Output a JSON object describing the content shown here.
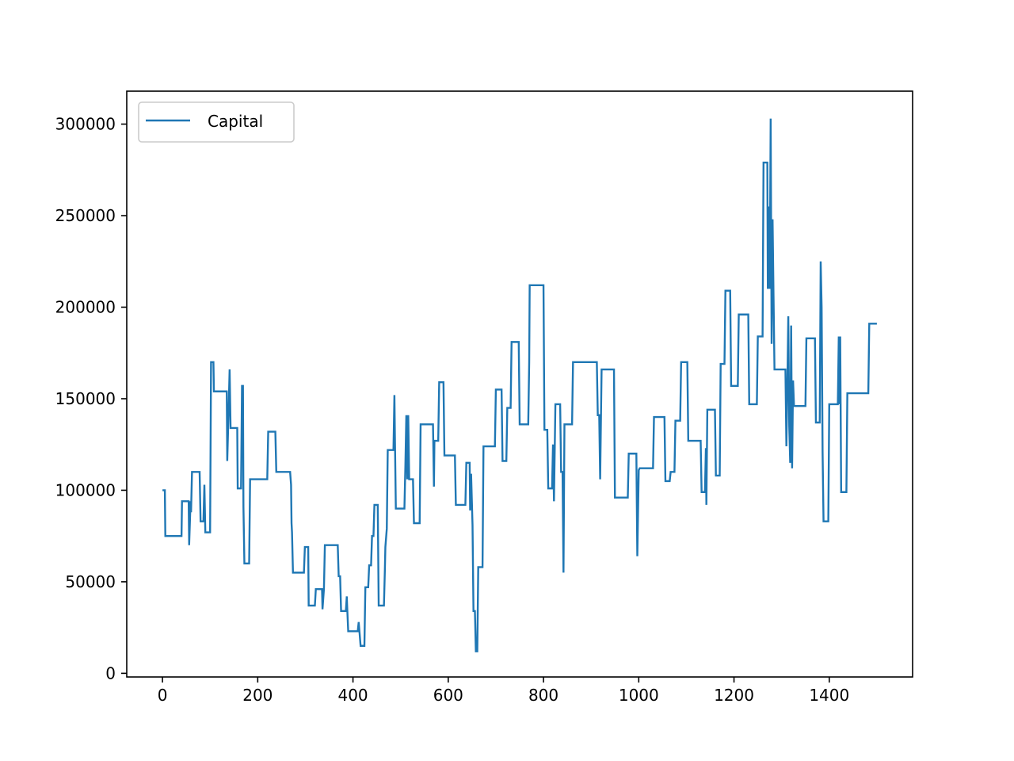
{
  "chart_data": {
    "type": "line",
    "title": "",
    "xlabel": "",
    "ylabel": "",
    "xlim": [
      -75,
      1575
    ],
    "ylim": [
      -2000,
      318000
    ],
    "xticks": [
      0,
      200,
      400,
      600,
      800,
      1000,
      1200,
      1400
    ],
    "xtick_labels": [
      "0",
      "200",
      "400",
      "600",
      "800",
      "1000",
      "1200",
      "1400"
    ],
    "yticks": [
      0,
      50000,
      100000,
      150000,
      200000,
      250000,
      300000
    ],
    "ytick_labels": [
      "0",
      "50000",
      "100000",
      "150000",
      "200000",
      "250000",
      "300000"
    ],
    "grid": false,
    "legend_position": "upper-left",
    "series": [
      {
        "name": "Capital",
        "color": "#1f77b4",
        "step": true,
        "points": [
          [
            0,
            100000
          ],
          [
            5,
            100000
          ],
          [
            6,
            75000
          ],
          [
            40,
            75000
          ],
          [
            41,
            94000
          ],
          [
            55,
            94000
          ],
          [
            56,
            70000
          ],
          [
            59,
            94000
          ],
          [
            60,
            88000
          ],
          [
            62,
            110000
          ],
          [
            78,
            110000
          ],
          [
            80,
            83000
          ],
          [
            86,
            83000
          ],
          [
            88,
            103000
          ],
          [
            90,
            77000
          ],
          [
            100,
            77000
          ],
          [
            102,
            170000
          ],
          [
            107,
            170000
          ],
          [
            108,
            154000
          ],
          [
            135,
            154000
          ],
          [
            136,
            116000
          ],
          [
            139,
            145000
          ],
          [
            141,
            166000
          ],
          [
            143,
            134000
          ],
          [
            157,
            134000
          ],
          [
            158,
            101000
          ],
          [
            165,
            101000
          ],
          [
            167,
            157000
          ],
          [
            169,
            157000
          ],
          [
            170,
            91000
          ],
          [
            172,
            60000
          ],
          [
            182,
            60000
          ],
          [
            184,
            106000
          ],
          [
            220,
            106000
          ],
          [
            222,
            132000
          ],
          [
            237,
            132000
          ],
          [
            239,
            110000
          ],
          [
            268,
            110000
          ],
          [
            270,
            103000
          ],
          [
            271,
            82000
          ],
          [
            272,
            77000
          ],
          [
            274,
            55000
          ],
          [
            297,
            55000
          ],
          [
            299,
            69000
          ],
          [
            306,
            69000
          ],
          [
            307,
            37000
          ],
          [
            320,
            37000
          ],
          [
            322,
            46000
          ],
          [
            335,
            46000
          ],
          [
            336,
            35000
          ],
          [
            339,
            46000
          ],
          [
            341,
            70000
          ],
          [
            368,
            70000
          ],
          [
            370,
            53000
          ],
          [
            373,
            53000
          ],
          [
            375,
            34000
          ],
          [
            385,
            34000
          ],
          [
            387,
            42000
          ],
          [
            388,
            35000
          ],
          [
            390,
            23000
          ],
          [
            410,
            23000
          ],
          [
            412,
            28000
          ],
          [
            416,
            15000
          ],
          [
            424,
            15000
          ],
          [
            426,
            47000
          ],
          [
            432,
            47000
          ],
          [
            434,
            59000
          ],
          [
            438,
            59000
          ],
          [
            440,
            75000
          ],
          [
            443,
            75000
          ],
          [
            445,
            92000
          ],
          [
            452,
            92000
          ],
          [
            454,
            37000
          ],
          [
            465,
            37000
          ],
          [
            467,
            57000
          ],
          [
            468,
            69000
          ],
          [
            471,
            79000
          ],
          [
            473,
            122000
          ],
          [
            485,
            122000
          ],
          [
            487,
            152000
          ],
          [
            488,
            130000
          ],
          [
            490,
            90000
          ],
          [
            508,
            90000
          ],
          [
            510,
            113000
          ],
          [
            512,
            141000
          ],
          [
            514,
            106000
          ],
          [
            516,
            141000
          ],
          [
            518,
            106000
          ],
          [
            526,
            106000
          ],
          [
            528,
            82000
          ],
          [
            540,
            82000
          ],
          [
            542,
            136000
          ],
          [
            568,
            136000
          ],
          [
            570,
            102000
          ],
          [
            571,
            127000
          ],
          [
            579,
            127000
          ],
          [
            581,
            159000
          ],
          [
            590,
            159000
          ],
          [
            592,
            119000
          ],
          [
            614,
            119000
          ],
          [
            616,
            92000
          ],
          [
            636,
            92000
          ],
          [
            638,
            115000
          ],
          [
            645,
            115000
          ],
          [
            646,
            89000
          ],
          [
            648,
            109000
          ],
          [
            651,
            81000
          ],
          [
            653,
            34000
          ],
          [
            656,
            34000
          ],
          [
            658,
            12000
          ],
          [
            661,
            12000
          ],
          [
            663,
            58000
          ],
          [
            672,
            58000
          ],
          [
            674,
            124000
          ],
          [
            698,
            124000
          ],
          [
            700,
            155000
          ],
          [
            712,
            155000
          ],
          [
            714,
            116000
          ],
          [
            722,
            116000
          ],
          [
            724,
            145000
          ],
          [
            731,
            145000
          ],
          [
            733,
            181000
          ],
          [
            748,
            181000
          ],
          [
            750,
            136000
          ],
          [
            768,
            136000
          ],
          [
            770,
            170000
          ],
          [
            771,
            212000
          ],
          [
            800,
            212000
          ],
          [
            802,
            133000
          ],
          [
            808,
            133000
          ],
          [
            810,
            101000
          ],
          [
            818,
            101000
          ],
          [
            820,
            125000
          ],
          [
            822,
            94000
          ],
          [
            825,
            147000
          ],
          [
            835,
            147000
          ],
          [
            837,
            110000
          ],
          [
            840,
            110000
          ],
          [
            842,
            55000
          ],
          [
            844,
            136000
          ],
          [
            860,
            136000
          ],
          [
            862,
            170000
          ],
          [
            912,
            170000
          ],
          [
            914,
            141000
          ],
          [
            917,
            141000
          ],
          [
            919,
            106000
          ],
          [
            922,
            166000
          ],
          [
            948,
            166000
          ],
          [
            950,
            96000
          ],
          [
            977,
            96000
          ],
          [
            979,
            120000
          ],
          [
            995,
            120000
          ],
          [
            997,
            64000
          ],
          [
            1000,
            111000
          ],
          [
            1002,
            112000
          ],
          [
            1030,
            112000
          ],
          [
            1032,
            140000
          ],
          [
            1054,
            140000
          ],
          [
            1056,
            105000
          ],
          [
            1065,
            105000
          ],
          [
            1067,
            110000
          ],
          [
            1075,
            110000
          ],
          [
            1077,
            138000
          ],
          [
            1087,
            138000
          ],
          [
            1089,
            170000
          ],
          [
            1102,
            170000
          ],
          [
            1104,
            127000
          ],
          [
            1130,
            127000
          ],
          [
            1132,
            99000
          ],
          [
            1139,
            99000
          ],
          [
            1141,
            123000
          ],
          [
            1142,
            92000
          ],
          [
            1144,
            144000
          ],
          [
            1160,
            144000
          ],
          [
            1162,
            108000
          ],
          [
            1170,
            108000
          ],
          [
            1172,
            169000
          ],
          [
            1180,
            169000
          ],
          [
            1182,
            209000
          ],
          [
            1192,
            209000
          ],
          [
            1194,
            157000
          ],
          [
            1208,
            157000
          ],
          [
            1210,
            196000
          ],
          [
            1230,
            196000
          ],
          [
            1232,
            147000
          ],
          [
            1248,
            147000
          ],
          [
            1250,
            184000
          ],
          [
            1260,
            184000
          ],
          [
            1262,
            279000
          ],
          [
            1270,
            279000
          ],
          [
            1271,
            210000
          ],
          [
            1273,
            255000
          ],
          [
            1275,
            210000
          ],
          [
            1277,
            303000
          ],
          [
            1279,
            180000
          ],
          [
            1281,
            248000
          ],
          [
            1283,
            206000
          ],
          [
            1285,
            166000
          ],
          [
            1308,
            166000
          ],
          [
            1310,
            124000
          ],
          [
            1312,
            156000
          ],
          [
            1314,
            195000
          ],
          [
            1316,
            135000
          ],
          [
            1318,
            115000
          ],
          [
            1320,
            190000
          ],
          [
            1322,
            112000
          ],
          [
            1324,
            160000
          ],
          [
            1326,
            146000
          ],
          [
            1350,
            146000
          ],
          [
            1352,
            183000
          ],
          [
            1370,
            183000
          ],
          [
            1372,
            137000
          ],
          [
            1380,
            137000
          ],
          [
            1382,
            225000
          ],
          [
            1384,
            200000
          ],
          [
            1386,
            121000
          ],
          [
            1388,
            83000
          ],
          [
            1398,
            83000
          ],
          [
            1400,
            147000
          ],
          [
            1418,
            147000
          ],
          [
            1420,
            184000
          ],
          [
            1421,
            147000
          ],
          [
            1423,
            184000
          ],
          [
            1425,
            99000
          ],
          [
            1436,
            99000
          ],
          [
            1438,
            153000
          ],
          [
            1482,
            153000
          ],
          [
            1484,
            191000
          ],
          [
            1500,
            191000
          ]
        ]
      }
    ]
  }
}
